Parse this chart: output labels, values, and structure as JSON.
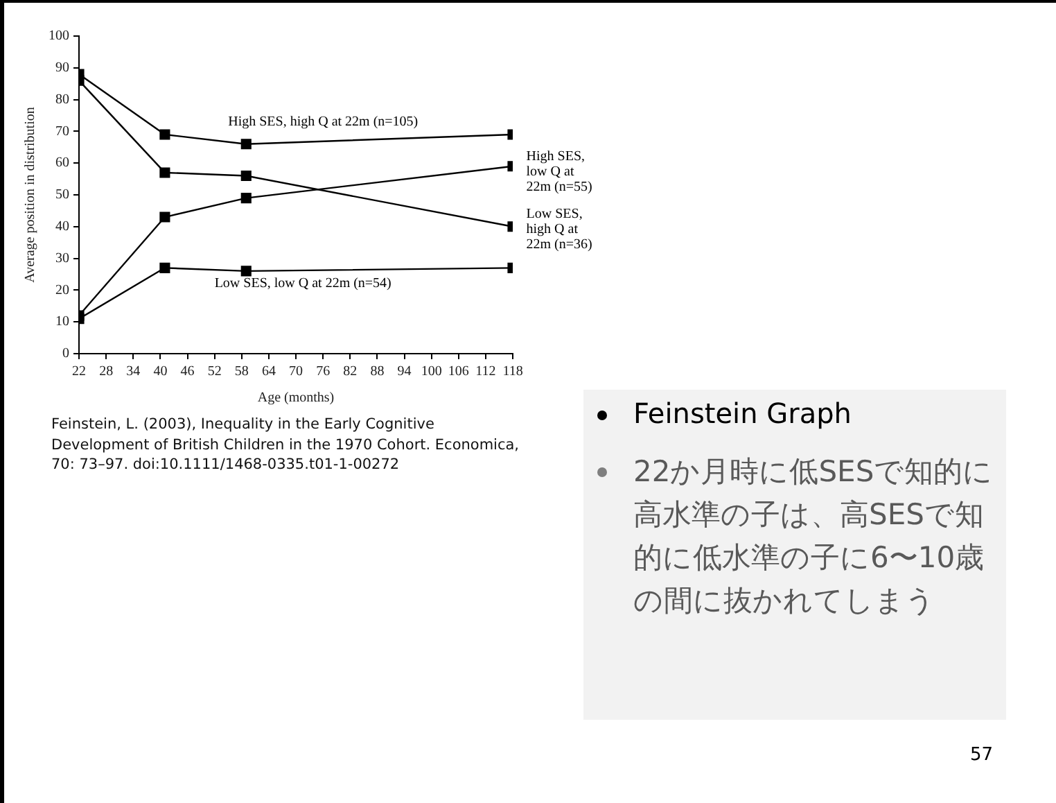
{
  "chart_data": {
    "type": "line",
    "xlabel": "Age (months)",
    "ylabel": "Average position in distribution",
    "xlim": [
      22,
      118
    ],
    "xticks": [
      22,
      28,
      34,
      40,
      46,
      52,
      58,
      64,
      70,
      76,
      82,
      88,
      94,
      100,
      106,
      112,
      118
    ],
    "ylim": [
      0,
      100
    ],
    "yticks": [
      0,
      10,
      20,
      30,
      40,
      50,
      60,
      70,
      80,
      90,
      100
    ],
    "grid": false,
    "legend": false,
    "marker": "square",
    "line_style": "solid",
    "series": [
      {
        "name": "High SES, high Q at 22m (n=105)",
        "color": "#000000",
        "x": [
          22,
          41,
          59,
          118
        ],
        "values": [
          88,
          69,
          66,
          69
        ]
      },
      {
        "name": "High SES, low Q at 22m (n=55)",
        "color": "#000000",
        "x": [
          22,
          41,
          59,
          118
        ],
        "values": [
          12,
          43,
          49,
          59
        ]
      },
      {
        "name": "Low SES, high Q at 22m (n=36)",
        "color": "#000000",
        "x": [
          22,
          41,
          59,
          118
        ],
        "values": [
          86,
          57,
          56,
          40
        ]
      },
      {
        "name": "Low SES, low Q at 22m (n=54)",
        "color": "#000000",
        "x": [
          22,
          41,
          59,
          118
        ],
        "values": [
          11,
          27,
          26,
          27
        ]
      }
    ],
    "annotations": [
      "Feinstein, L. (2003), Inequality in the Early Cognitive Development of British Children in the 1970 Cohort. Economica, 70: 73–97. doi:10.1111/1468-0335.t01-1-00272",
      "Feinstein Graph",
      "22か月時に低SESで知的に高水準の子は、高SESで知的に低水準の子に6〜10歳の間に抜かれてしまう",
      "57"
    ]
  }
}
